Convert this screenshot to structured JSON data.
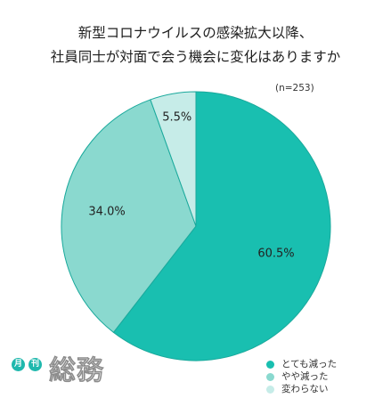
{
  "chart_data": {
    "type": "pie",
    "title_lines": [
      "新型コロナウイルスの感染拡大以降、",
      "社員同士が対面で会う機会に変化はありますか"
    ],
    "sample_size": "(n=253)",
    "categories": [
      "とても減った",
      "やや減った",
      "変わらない"
    ],
    "values": [
      60.5,
      34.0,
      5.5
    ],
    "value_labels": [
      "60.5%",
      "34.0%",
      "5.5%"
    ],
    "colors": [
      "#19bfb0",
      "#8ad9cf",
      "#c6ece8"
    ],
    "legend_position": "bottom-right"
  },
  "logo": {
    "badge_chars": [
      "月",
      "刊"
    ],
    "name": "総務",
    "badge_color": "#1fb8ad"
  }
}
